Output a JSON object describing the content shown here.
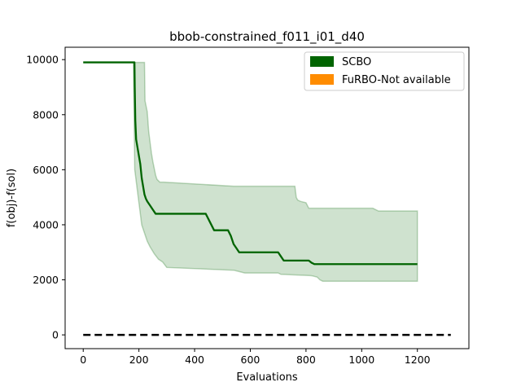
{
  "chart_data": {
    "type": "line",
    "title": "bbob-constrained_f011_i01_d40",
    "xlabel": "Evaluations",
    "ylabel": "f(obj)-f(sol)",
    "xlim": [
      -65,
      1385
    ],
    "ylim": [
      -500,
      10450
    ],
    "xticks": [
      0,
      200,
      400,
      600,
      800,
      1000,
      1200
    ],
    "yticks": [
      0,
      2000,
      4000,
      6000,
      8000,
      10000
    ],
    "grid": false,
    "legend_position": "top-right",
    "legend": [
      {
        "label": "SCBO",
        "color": "#006400"
      },
      {
        "label": "FuRBO-Not available",
        "color": "#ff8c00"
      }
    ],
    "series": [
      {
        "name": "SCBO",
        "color": "#006400",
        "x": [
          0,
          184,
          185,
          187,
          190,
          195,
          200,
          205,
          210,
          215,
          220,
          225,
          230,
          240,
          250,
          260,
          440,
          450,
          460,
          470,
          520,
          530,
          540,
          550,
          560,
          700,
          710,
          720,
          730,
          810,
          820,
          830,
          1200
        ],
        "y": [
          9900,
          9900,
          9000,
          7800,
          7100,
          6800,
          6500,
          6200,
          5700,
          5400,
          5100,
          4950,
          4850,
          4700,
          4550,
          4400,
          4400,
          4200,
          4000,
          3800,
          3800,
          3600,
          3300,
          3150,
          3000,
          3000,
          2850,
          2700,
          2700,
          2700,
          2620,
          2570,
          2570
        ]
      }
    ],
    "band": {
      "series": "SCBO",
      "color": "#006400",
      "opacity": 0.19,
      "upper": {
        "x": [
          180,
          220,
          222,
          230,
          235,
          240,
          245,
          250,
          255,
          260,
          265,
          275,
          290,
          540,
          760,
          765,
          770,
          780,
          800,
          810,
          820,
          1040,
          1060,
          1200
        ],
        "y": [
          9900,
          9900,
          8500,
          8100,
          7400,
          7000,
          6600,
          6300,
          6050,
          5800,
          5650,
          5550,
          5550,
          5400,
          5400,
          5000,
          4900,
          4850,
          4800,
          4600,
          4600,
          4600,
          4500,
          4500
        ]
      },
      "lower": {
        "x": [
          180,
          185,
          190,
          195,
          200,
          205,
          210,
          220,
          230,
          240,
          255,
          270,
          285,
          300,
          540,
          560,
          580,
          700,
          710,
          820,
          840,
          850,
          860,
          1200
        ],
        "y": [
          9900,
          6000,
          5600,
          5200,
          4800,
          4400,
          4000,
          3700,
          3400,
          3200,
          2950,
          2750,
          2650,
          2450,
          2350,
          2300,
          2250,
          2250,
          2200,
          2150,
          2100,
          2000,
          1950,
          1950
        ]
      }
    },
    "reference_line": {
      "y": 0,
      "x": [
        0,
        1320
      ],
      "color": "#000000",
      "style": "dashed"
    }
  }
}
